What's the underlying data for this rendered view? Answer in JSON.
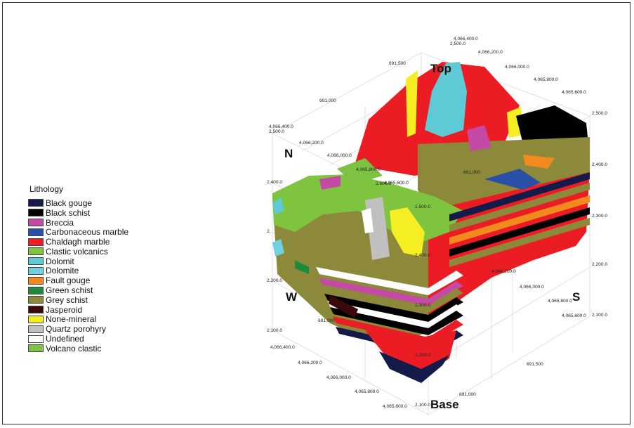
{
  "legend": {
    "title": "Lithology",
    "items": [
      {
        "label": "Black gouge",
        "color": "#141a4a"
      },
      {
        "label": "Black schist",
        "color": "#000000"
      },
      {
        "label": "Breccia",
        "color": "#c54aa6"
      },
      {
        "label": "Carbonaceous marble",
        "color": "#2a4fa6"
      },
      {
        "label": "Chaldagh marble",
        "color": "#ec1c24"
      },
      {
        "label": "Clastic volcanics",
        "color": "#7ec43f"
      },
      {
        "label": "Dolomit",
        "color": "#5ecad6"
      },
      {
        "label": "Dolomite",
        "color": "#6fd0e0"
      },
      {
        "label": "Fault gouge",
        "color": "#f28a1e"
      },
      {
        "label": "Green schist",
        "color": "#1e8a3c"
      },
      {
        "label": "Grey schist",
        "color": "#8c8a3a"
      },
      {
        "label": "Jasperoid",
        "color": "#3a0a0a"
      },
      {
        "label": "None-mineral",
        "color": "#f5ee22"
      },
      {
        "label": "Quartz porohyry",
        "color": "#c0c0c0"
      },
      {
        "label": "Undefined",
        "color": "#ffffff"
      },
      {
        "label": "Volcano clastic",
        "color": "#7dc242"
      }
    ]
  },
  "directions": {
    "top": "Top",
    "base": "Base",
    "north": "N",
    "south": "S",
    "west": "W"
  },
  "axis_labels": {
    "northing_top": [
      "4,066,400.0",
      "4,066,200.0",
      "4,066,000.0",
      "4,065,800.0",
      "4,065,600.0"
    ],
    "northing_left": [
      "4,066,400.0",
      "4,066,200.0",
      "4,066,000.0",
      "4,065,800.0",
      "4,065,600.0"
    ],
    "northing_bottom_left": [
      "4,066,400.0",
      "4,066,200.0",
      "4,066,000.0",
      "4,065,800.0",
      "4,065,600.0"
    ],
    "northing_right": [
      "4,066,200.0",
      "4,066,000.0",
      "4,065,800.0",
      "4,065,600.0"
    ],
    "easting_top": [
      "691,500",
      "691,000"
    ],
    "easting_inner": "691,000",
    "easting_left": "691,000",
    "easting_bottom": [
      "691,500",
      "691,000"
    ],
    "elev_top": "2,500.0",
    "elev_right": [
      "2,500.0",
      "2,400.0",
      "2,300.0",
      "2,200.0",
      "2,100.0"
    ],
    "elev_left": [
      "2,500.0",
      "2,400.0",
      "2,300.0",
      "2,200.0",
      "2,100.0"
    ],
    "elev_left_partial": "2,",
    "elev_center": [
      "2,600.0",
      "2,500.0",
      "2,400.0",
      "2,300.0",
      "2,200.0",
      "2,100.0"
    ]
  }
}
